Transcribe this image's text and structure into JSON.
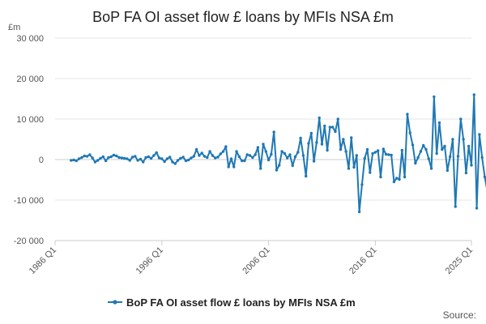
{
  "chart_data": {
    "type": "line",
    "title": "BoP FA OI asset flow £ loans by MFIs NSA £m",
    "unit_label": "£m",
    "series_name": "BoP FA OI asset flow £ loans by MFIs NSA £m",
    "source_label": "Source:",
    "color": "#1f78b4",
    "ylim": [
      -20000,
      30000
    ],
    "y_ticks": [
      -20000,
      -10000,
      0,
      10000,
      20000,
      30000
    ],
    "y_tick_labels": [
      "-20 000",
      "-10 000",
      "0",
      "10 000",
      "20 000",
      "30 000"
    ],
    "x_ticks": [
      "1986 Q1",
      "1996 Q1",
      "2006 Q1",
      "2016 Q1",
      "2025 Q1"
    ],
    "grid": "horizontal",
    "legend_position": "bottom",
    "start": "1987 Q3",
    "values": [
      -200,
      -100,
      -300,
      200,
      500,
      900,
      800,
      1200,
      400,
      -600,
      -200,
      300,
      700,
      -300,
      500,
      700,
      1100,
      900,
      500,
      400,
      300,
      200,
      -200,
      600,
      800,
      -200,
      100,
      -600,
      500,
      700,
      300,
      1000,
      1700,
      400,
      200,
      -500,
      200,
      600,
      -600,
      -1000,
      -200,
      300,
      600,
      -300,
      -100,
      400,
      800,
      2500,
      1000,
      1600,
      800,
      500,
      2000,
      1000,
      400,
      600,
      1400,
      2000,
      3200,
      -1800,
      200,
      -1800,
      2000,
      700,
      -300,
      -300,
      1200,
      1000,
      500,
      1200,
      3000,
      -2200,
      3800,
      2000,
      -100,
      1300,
      6800,
      -2600,
      -1400,
      2000,
      1500,
      400,
      1200,
      -1500,
      700,
      1800,
      5300,
      1000,
      -4100,
      4000,
      6500,
      -400,
      4200,
      10300,
      3800,
      8300,
      2300,
      8000,
      8000,
      6900,
      10000,
      2500,
      5000,
      2000,
      -2200,
      5400,
      -1900,
      1000,
      -12900,
      -6200,
      300,
      2500,
      -3200,
      1500,
      1800,
      2200,
      -4300,
      2600,
      1300,
      1200,
      1100,
      -5500,
      -4600,
      -4900,
      2300,
      -4300,
      11200,
      6600,
      3600,
      -900,
      500,
      2000,
      3500,
      2500,
      200,
      -2200,
      15500,
      1500,
      9100,
      2500,
      3300,
      -2700,
      700,
      5000,
      -11600,
      800,
      10000,
      5000,
      -3300,
      3300,
      -1400,
      16000,
      -12000,
      6200,
      500,
      -4300,
      -7900,
      7800,
      -1600,
      -1300,
      -1200,
      4600,
      -10800,
      1800,
      -1700,
      2100,
      9800,
      1000,
      13800,
      20200,
      11000,
      3800
    ]
  }
}
